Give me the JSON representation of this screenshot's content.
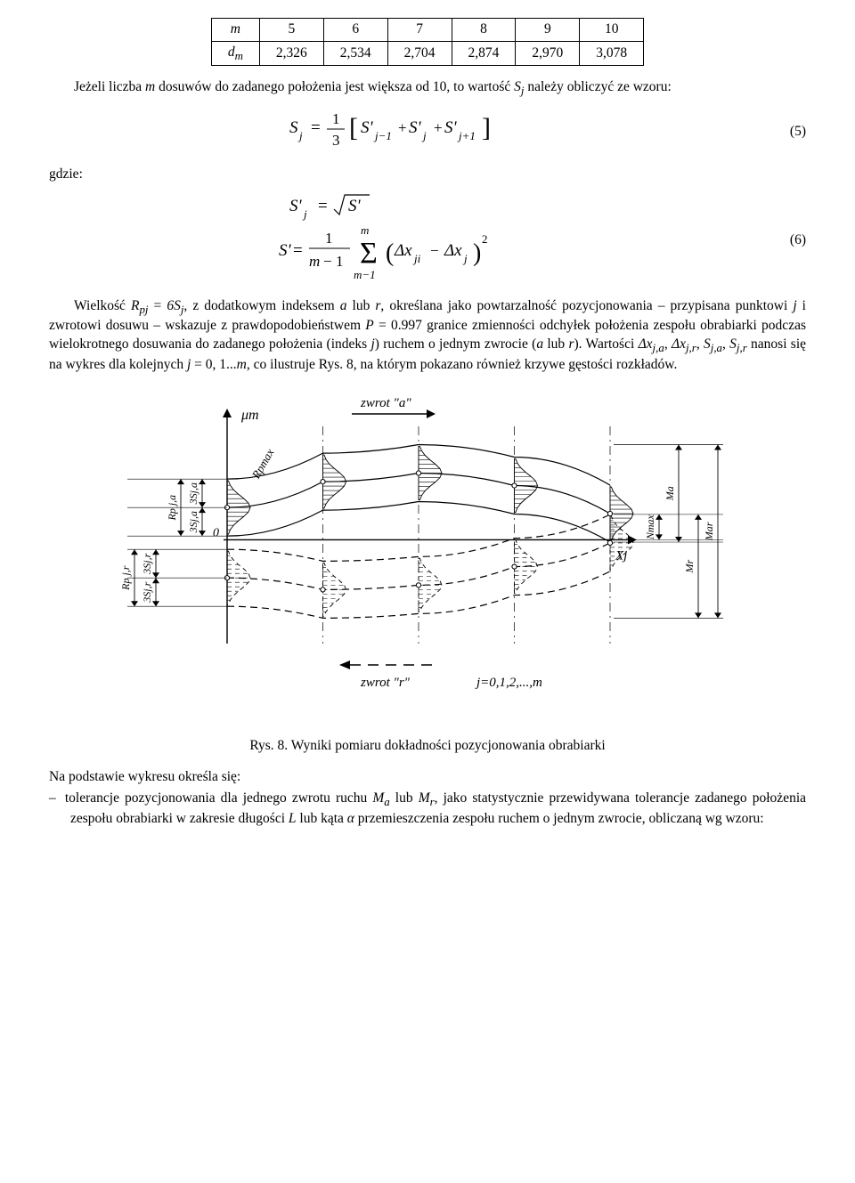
{
  "table": {
    "row1": [
      "m",
      "5",
      "6",
      "7",
      "8",
      "9",
      "10"
    ],
    "row2_label": "d",
    "row2_sub": "m",
    "row2": [
      "2,326",
      "2,534",
      "2,704",
      "2,874",
      "2,970",
      "3,078"
    ]
  },
  "para1_a": "Jeżeli liczba ",
  "para1_m": "m",
  "para1_b": " dosuwów do zadanego położenia jest większa od 10, to wartość ",
  "para1_Sj_S": "S",
  "para1_Sj_j": "j",
  "para1_c": " należy obliczyć ze wzoru:",
  "eq5_num": "(5)",
  "gdzie": "gdzie:",
  "eq6_num": "(6)",
  "para2_a": "Wielkość ",
  "para2_R": "R",
  "para2_Rsub": "pj",
  "para2_b": " = ",
  "para2_6S": "6S",
  "para2_6Sj": "j",
  "para2_c": ", z dodatkowym indeksem ",
  "para2_aidx": "a",
  "para2_d": " lub ",
  "para2_ridx": "r",
  "para2_e": ", określana jako powtarzalność pozycjonowania – przypisana punktowi ",
  "para2_j": "j",
  "para2_f": " i zwrotowi dosuwu – wskazuje z prawdopodobieństwem ",
  "para2_P": "P",
  "para2_g": " = 0.997 granice zmienności odchyłek położenia zespołu obrabiarki podczas wielokrotnego dosuwania do zadanego położenia (indeks ",
  "para2_j2": "j",
  "para2_h": ") ruchem o jednym zwrocie (",
  "para2_a2": "a",
  "para2_i": " lub ",
  "para2_r2": "r",
  "para2_j3": "). Wartości ",
  "dxja_1": "Δx",
  "dxja_2": "j,a",
  "comma1": ", ",
  "dxjr_1": "Δx",
  "dxjr_2": "j,r",
  "comma2": ", ",
  "sja_1": "S",
  "sja_2": "j,a",
  "comma3": ", ",
  "sjr_1": "S",
  "sjr_2": "j,r",
  "para2_k": " nanosi się na wykres dla kolejnych ",
  "para2_jeq": "j",
  "para2_l": " = 0, 1...",
  "para2_m": "m",
  "para2_n": ", co ilustruje Rys. 8, na którym pokazano również krzywe gęstości rozkładów.",
  "fig": {
    "um": "μm",
    "zwrot_a": "zwrot  \"a\"",
    "zwrot_r": "zwrot  \"r\"",
    "Rpmax": "Rpmax",
    "Rpja": "Rp j,a",
    "Rpjr": "Rp j,r",
    "s3ja1": "3Sj,a",
    "s3ja2": "3Sj,a",
    "s3jr1": "3Sj,r",
    "s3jr2": "3Sj,r",
    "zero": "0",
    "Xj": "Xj",
    "Nmax": "Nmax",
    "Ma": "Ma",
    "Mr": "Mr",
    "Mar": "Mar",
    "jrange": "j=0,1,2,...,m",
    "stroke": "#000000",
    "hatch": "#000000",
    "thin": 0.9,
    "axis": 1.4,
    "n_stations": 5
  },
  "caption_a": "Rys. 8. ",
  "caption_b": "Wyniki pomiaru dokładności pozycjonowania obrabiarki",
  "outro_a": "Na podstawie wykresu określa się:",
  "bullet_a": "tolerancje pozycjonowania dla jednego zwrotu ruchu ",
  "bullet_Ma1": "M",
  "bullet_Ma2": "a",
  "bullet_b": " lub ",
  "bullet_Mr1": "M",
  "bullet_Mr2": "r",
  "bullet_c": ", jako statystycznie przewidywana tolerancje zadanego położenia zespołu obrabiarki w zakresie długości ",
  "bullet_L": "L",
  "bullet_d": " lub kąta ",
  "bullet_alpha": "α",
  "bullet_e": " przemieszczenia zespołu ruchem o jednym zwrocie, obliczaną wg wzoru:"
}
